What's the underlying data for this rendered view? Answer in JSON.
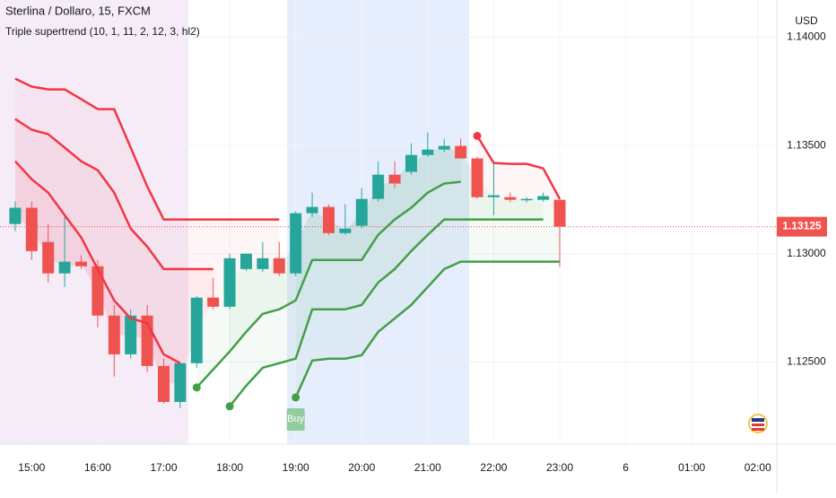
{
  "chart_data": {
    "type": "candlestick",
    "title": "Sterlina / Dollaro, 15, FXCM",
    "subtitle": "Triple supertrend (10, 1, 11, 2, 12, 3, hl2)",
    "y_axis_label": "USD",
    "up_color": "#26a69a",
    "down_color": "#ef5350",
    "x": [
      0,
      1,
      2,
      3,
      4,
      5,
      6,
      7,
      8,
      9,
      10,
      11,
      12,
      13,
      14,
      15,
      16,
      17,
      18,
      19,
      20,
      21,
      22,
      23,
      24,
      25,
      26,
      27,
      28,
      29,
      30,
      31,
      32,
      33
    ],
    "open": [
      1.13137,
      1.13212,
      1.13054,
      1.12909,
      1.12963,
      1.12942,
      1.12714,
      1.12535,
      1.12714,
      1.12481,
      1.12315,
      1.12494,
      1.12797,
      1.12755,
      1.12929,
      1.12929,
      1.12979,
      1.12909,
      1.13187,
      1.13216,
      1.13095,
      1.13129,
      1.13253,
      1.13365,
      1.13378,
      1.13456,
      1.13481,
      1.13498,
      1.1344,
      1.13261,
      1.13261,
      1.13253,
      1.13249,
      1.13249
    ],
    "high": [
      1.13241,
      1.13241,
      1.13137,
      1.13178,
      1.12992,
      1.12971,
      1.12763,
      1.12743,
      1.12763,
      1.12515,
      1.12494,
      1.12805,
      1.12888,
      1.13,
      1.12992,
      1.13054,
      1.13054,
      1.13195,
      1.13282,
      1.13228,
      1.13228,
      1.13303,
      1.13427,
      1.13427,
      1.1351,
      1.1356,
      1.13531,
      1.13531,
      1.13448,
      1.13427,
      1.13282,
      1.13261,
      1.13282,
      1.13261
    ],
    "low": [
      1.13104,
      1.12971,
      1.12867,
      1.12846,
      1.12929,
      1.1266,
      1.12432,
      1.12515,
      1.12452,
      1.12307,
      1.12286,
      1.12473,
      1.12743,
      1.12743,
      1.12921,
      1.12917,
      1.12896,
      1.12896,
      1.1317,
      1.13087,
      1.13087,
      1.13116,
      1.13241,
      1.13303,
      1.13365,
      1.13448,
      1.13469,
      1.1344,
      1.13253,
      1.13178,
      1.13237,
      1.13237,
      1.13241,
      1.12938
    ],
    "close": [
      1.13212,
      1.13012,
      1.12909,
      1.12963,
      1.12942,
      1.12714,
      1.12535,
      1.12714,
      1.12481,
      1.12315,
      1.12494,
      1.12797,
      1.12755,
      1.12979,
      1.13,
      1.12979,
      1.12909,
      1.13187,
      1.13216,
      1.13095,
      1.13116,
      1.13253,
      1.13365,
      1.13324,
      1.13456,
      1.13481,
      1.13498,
      1.1344,
      1.13261,
      1.1327,
      1.13249,
      1.13253,
      1.13266,
      1.13125
    ],
    "series": [
      {
        "color": "#f23645",
        "values": [
          1.13809,
          1.13772,
          1.13759,
          1.13759,
          1.13714,
          1.13668,
          1.13668,
          1.1349,
          1.13311,
          1.13158,
          1.13158,
          1.13158,
          1.13158,
          1.13158,
          1.13158,
          1.13158,
          1.13158,
          null,
          null,
          null,
          null,
          null,
          null,
          null,
          null,
          null,
          null,
          null,
          1.13544,
          1.13419,
          1.13415,
          1.13415,
          1.13394,
          1.13253
        ]
      },
      {
        "color": "#f23645",
        "values": [
          1.13622,
          1.13573,
          1.13552,
          1.1349,
          1.13427,
          1.13386,
          1.13282,
          1.13116,
          1.13033,
          1.12929,
          1.12929,
          1.12929,
          1.12929,
          null,
          null,
          null,
          null,
          null,
          null,
          null,
          null,
          null,
          null,
          null,
          null,
          null,
          null,
          null,
          null,
          null,
          null,
          null,
          null,
          null
        ]
      },
      {
        "color": "#f23645",
        "values": [
          1.13427,
          1.13344,
          1.13282,
          1.13178,
          1.13075,
          1.12929,
          1.12784,
          1.12701,
          1.1268,
          1.12535,
          1.12494,
          null,
          null,
          null,
          null,
          null,
          null,
          null,
          null,
          null,
          null,
          null,
          null,
          null,
          null,
          null,
          null,
          null,
          null,
          null,
          null,
          null,
          null,
          null
        ]
      },
      {
        "color": "#43a047",
        "values": [
          null,
          null,
          null,
          null,
          null,
          null,
          null,
          null,
          null,
          null,
          null,
          1.12382,
          1.12465,
          1.12548,
          1.12639,
          1.12722,
          1.12743,
          1.12784,
          1.12971,
          1.12971,
          1.12971,
          1.12971,
          1.13087,
          1.13158,
          1.13212,
          1.13282,
          1.13324,
          1.13332,
          null,
          null,
          null,
          null,
          null,
          null
        ]
      },
      {
        "color": "#43a047",
        "values": [
          null,
          null,
          null,
          null,
          null,
          null,
          null,
          null,
          null,
          null,
          null,
          null,
          null,
          1.12295,
          1.1239,
          1.12473,
          1.12494,
          1.12515,
          1.12743,
          1.12743,
          1.12743,
          1.12763,
          1.12867,
          1.12929,
          1.13012,
          1.13087,
          1.13158,
          1.13158,
          1.13158,
          1.13158,
          1.13158,
          1.13158,
          1.13158,
          null
        ]
      },
      {
        "color": "#43a047",
        "values": [
          null,
          null,
          null,
          null,
          null,
          null,
          null,
          null,
          null,
          null,
          null,
          null,
          null,
          null,
          null,
          null,
          null,
          1.12336,
          1.12506,
          1.12515,
          1.12515,
          1.12531,
          1.12639,
          1.12701,
          1.12763,
          1.12846,
          1.12929,
          1.12963,
          1.12963,
          1.12963,
          1.12963,
          1.12963,
          1.12963,
          1.12963
        ]
      }
    ],
    "annotations": [
      {
        "text": "Buy",
        "x": 17
      }
    ],
    "last_price": {
      "value": 1.13125,
      "label": "1.13125"
    },
    "xlim": [
      -0.92,
      46.1
    ],
    "ylim": [
      1.1212,
      1.14172
    ],
    "xticks": [
      {
        "value": 1,
        "label": "15:00"
      },
      {
        "value": 5,
        "label": "16:00"
      },
      {
        "value": 9,
        "label": "17:00"
      },
      {
        "value": 13,
        "label": "18:00"
      },
      {
        "value": 17,
        "label": "19:00"
      },
      {
        "value": 21,
        "label": "20:00"
      },
      {
        "value": 25,
        "label": "21:00"
      },
      {
        "value": 29,
        "label": "22:00"
      },
      {
        "value": 33,
        "label": "23:00"
      },
      {
        "value": 37,
        "label": "6"
      },
      {
        "value": 41,
        "label": "01:00"
      },
      {
        "value": 45,
        "label": "02:00"
      }
    ],
    "yticks": [
      {
        "value": 1.14,
        "label": "1.14000"
      },
      {
        "value": 1.135,
        "label": "1.13500"
      },
      {
        "value": 1.13,
        "label": "1.13000"
      },
      {
        "value": 1.125,
        "label": "1.12500"
      }
    ],
    "grid": true
  }
}
